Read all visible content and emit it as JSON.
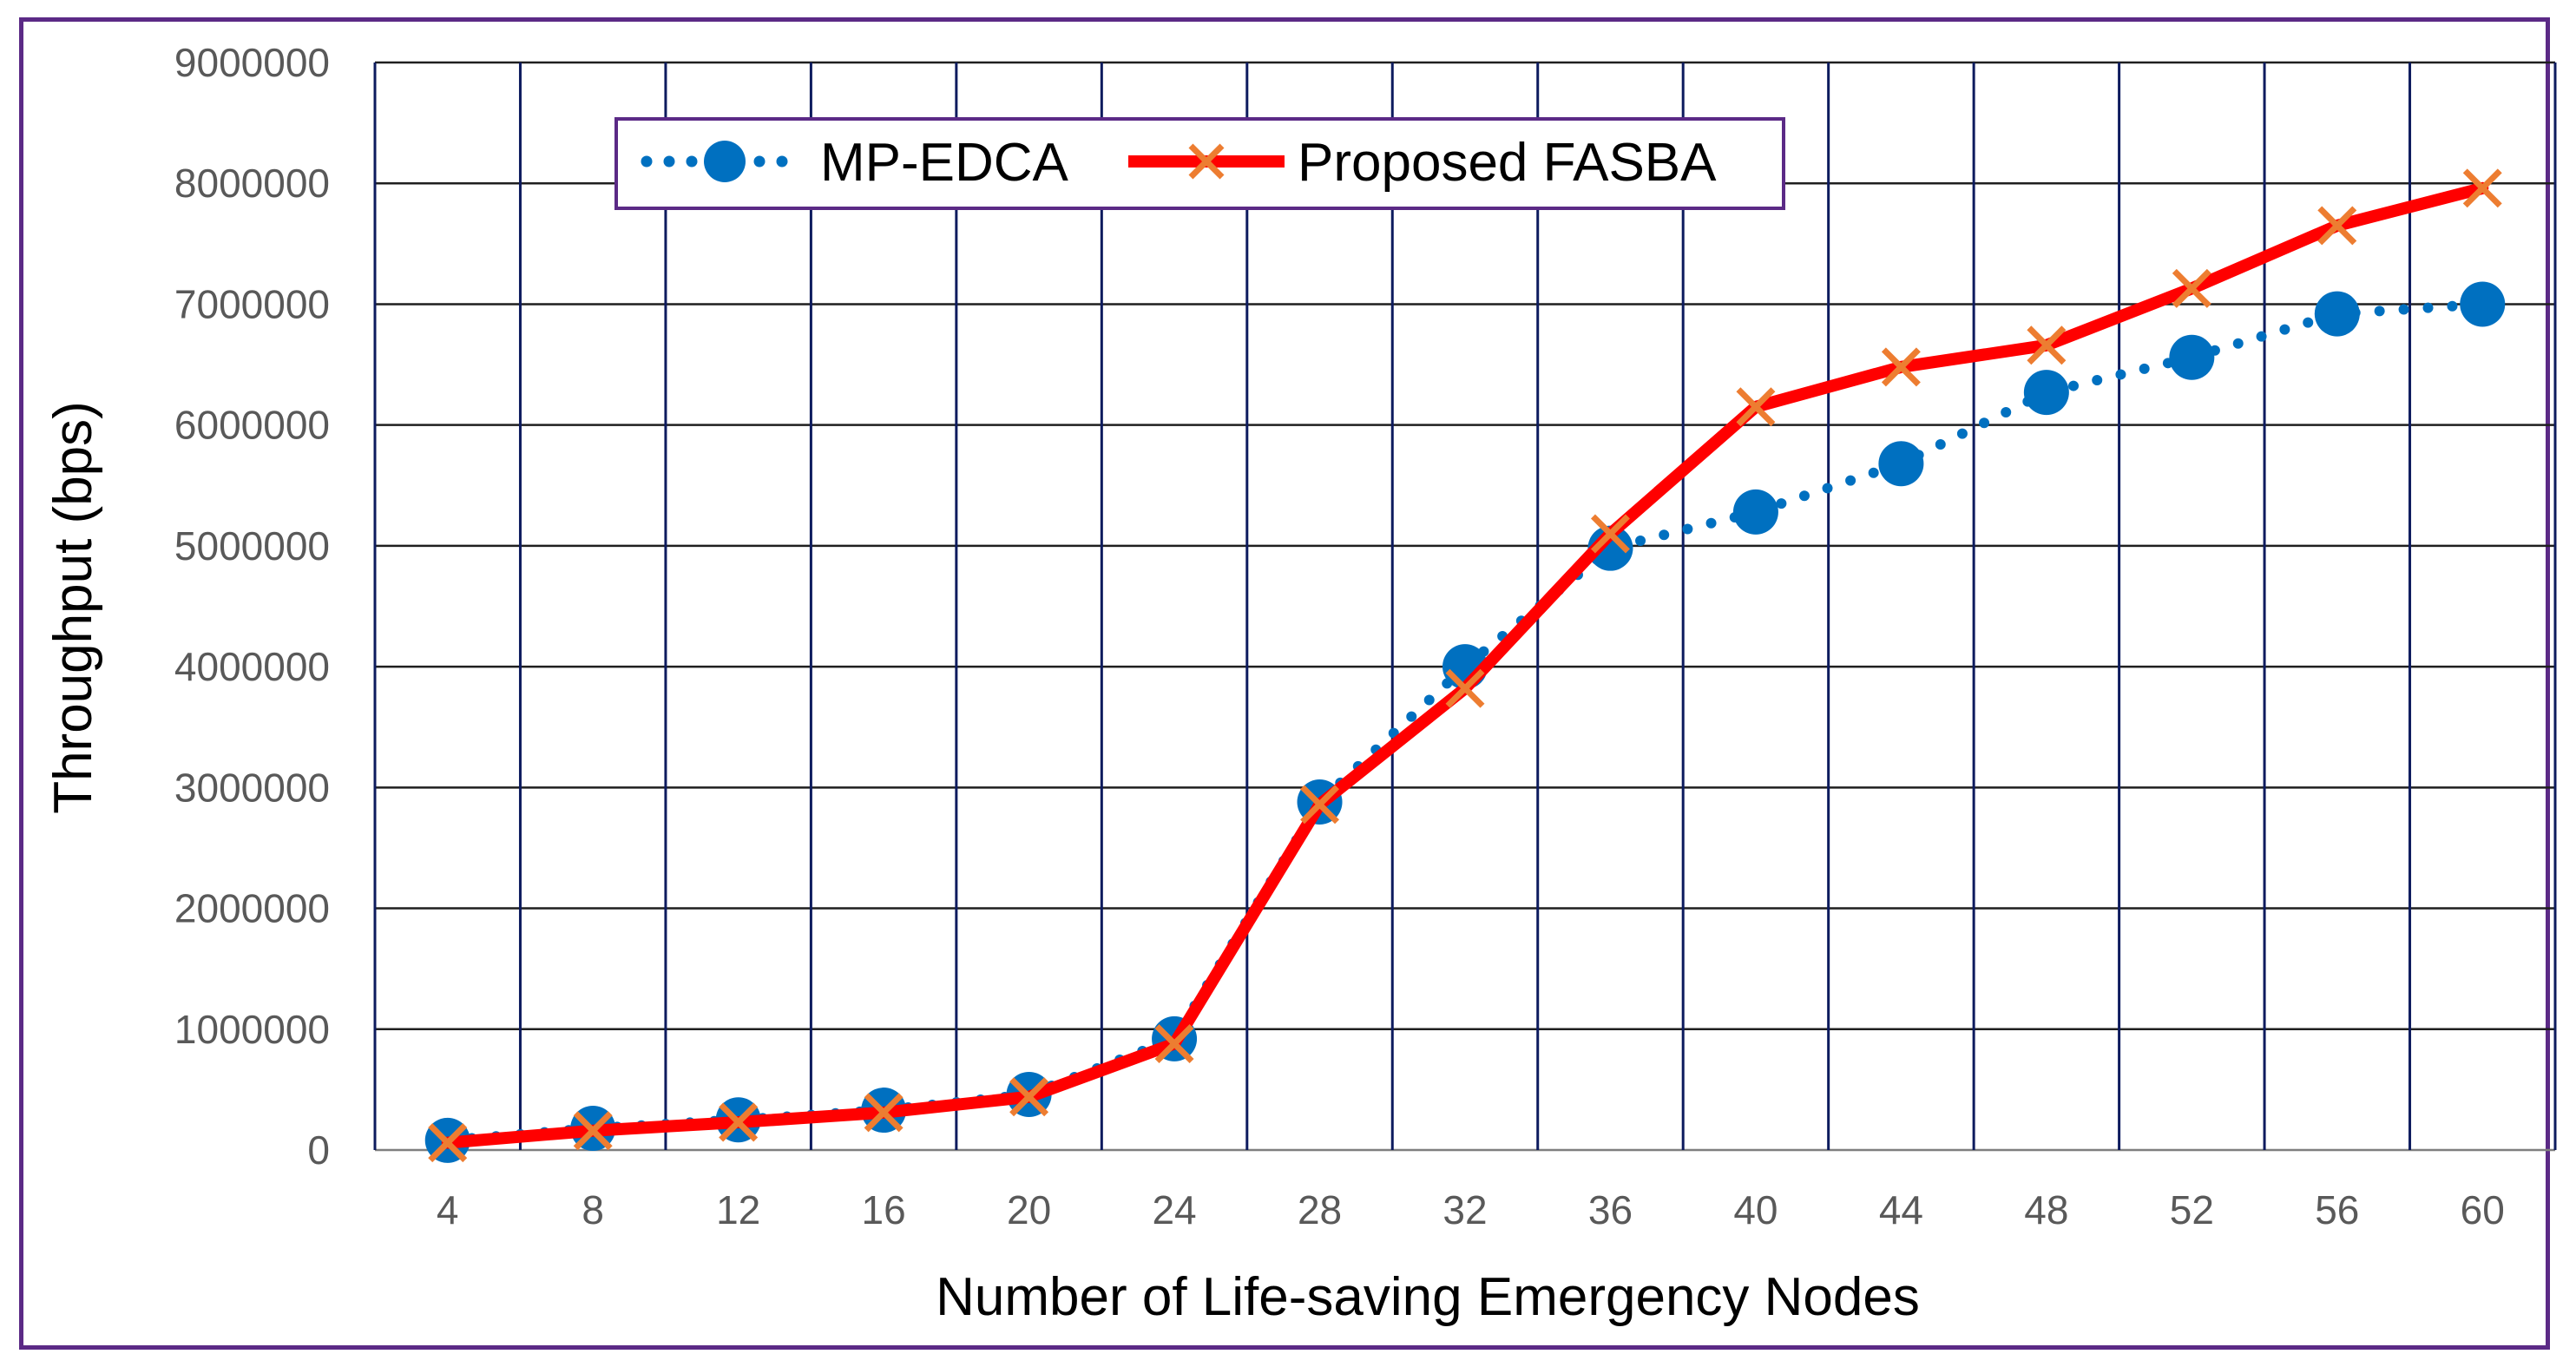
{
  "chart_data": {
    "type": "line",
    "title": "",
    "xlabel": "Number of Life-saving Emergency Nodes",
    "ylabel": "Throughput (bps)",
    "x": [
      4,
      8,
      12,
      16,
      20,
      24,
      28,
      32,
      36,
      40,
      44,
      48,
      52,
      56,
      60
    ],
    "x_tick_labels": [
      "4",
      "8",
      "12",
      "16",
      "20",
      "24",
      "28",
      "32",
      "36",
      "40",
      "44",
      "48",
      "52",
      "56",
      "60"
    ],
    "y_tick_labels": [
      "0",
      "1000000",
      "2000000",
      "3000000",
      "4000000",
      "5000000",
      "6000000",
      "7000000",
      "8000000",
      "9000000"
    ],
    "ylim": [
      0,
      9000000
    ],
    "grid": true,
    "legend_position": "top-left",
    "series": [
      {
        "name": "MP-EDCA",
        "style": "dotted-circle",
        "color": "#0070c0",
        "values": [
          80000,
          180000,
          250000,
          330000,
          460000,
          920000,
          2880000,
          4000000,
          4980000,
          5280000,
          5680000,
          6270000,
          6560000,
          6920000,
          7000000
        ]
      },
      {
        "name": "Proposed FASBA",
        "style": "solid-cross",
        "color": "#ff0000",
        "marker_color": "#ed7d31",
        "values": [
          60000,
          160000,
          230000,
          310000,
          440000,
          880000,
          2860000,
          3820000,
          5100000,
          6150000,
          6480000,
          6660000,
          7130000,
          7650000,
          7960000
        ]
      }
    ]
  }
}
